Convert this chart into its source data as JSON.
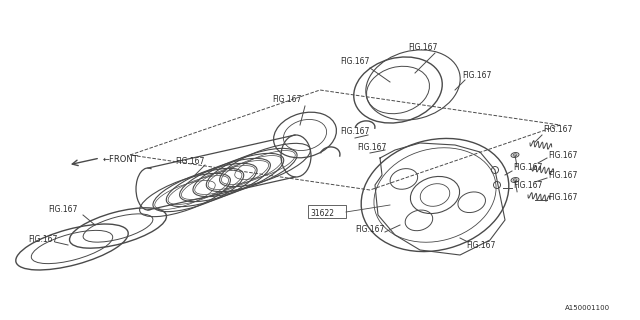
{
  "bg_color": "#ffffff",
  "line_color": "#4a4a4a",
  "text_color": "#2a2a2a",
  "fig_label": "FIG.167",
  "part_number": "31622",
  "diagram_id": "A150001100"
}
